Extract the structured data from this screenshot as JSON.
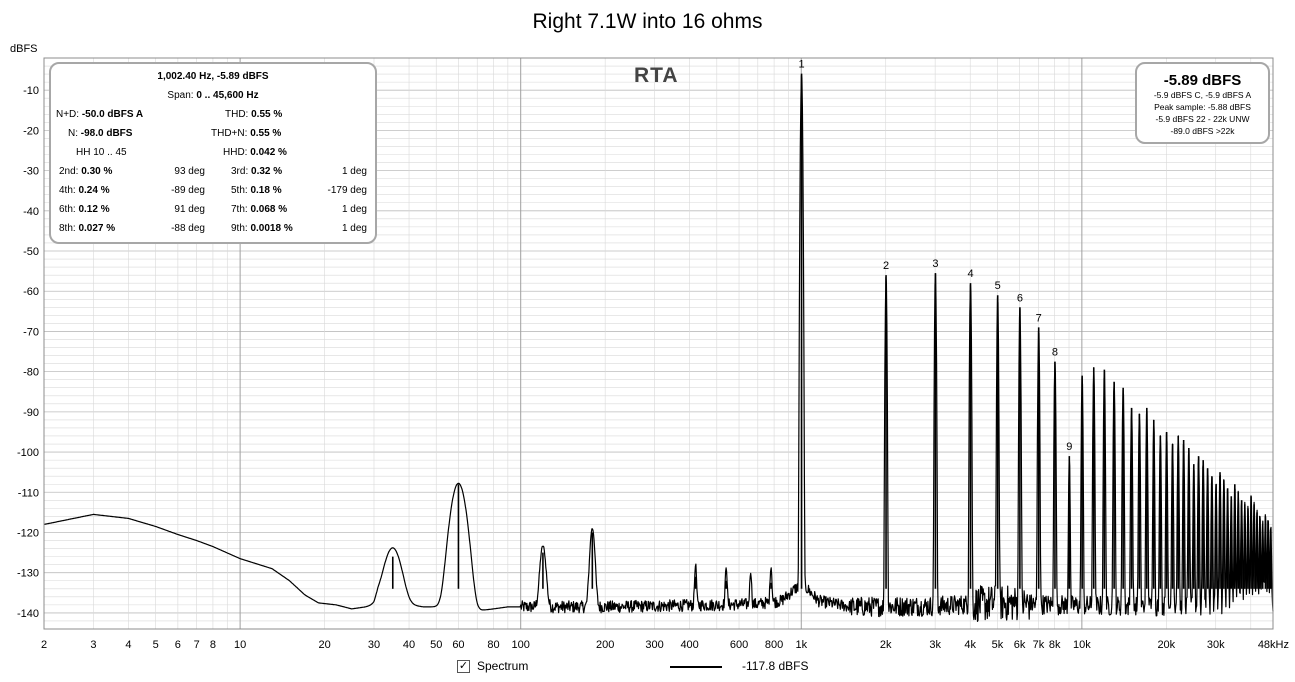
{
  "chart_data": {
    "type": "line",
    "title": "Right 7.1W into 16 ohms",
    "ylabel": "dBFS",
    "xlabel": "",
    "x_scale": "log",
    "xlim_hz": [
      2,
      48000
    ],
    "ylim": [
      -144,
      -2
    ],
    "y_ticks": [
      -10,
      -20,
      -30,
      -40,
      -50,
      -60,
      -70,
      -80,
      -90,
      -100,
      -110,
      -120,
      -130,
      -140
    ],
    "x_ticks": [
      {
        "v": 2,
        "label": "2"
      },
      {
        "v": 3,
        "label": "3"
      },
      {
        "v": 4,
        "label": "4"
      },
      {
        "v": 5,
        "label": "5"
      },
      {
        "v": 6,
        "label": "6"
      },
      {
        "v": 7,
        "label": "7"
      },
      {
        "v": 8,
        "label": "8"
      },
      {
        "v": 10,
        "label": "10"
      },
      {
        "v": 20,
        "label": "20"
      },
      {
        "v": 30,
        "label": "30"
      },
      {
        "v": 40,
        "label": "40"
      },
      {
        "v": 50,
        "label": "50"
      },
      {
        "v": 60,
        "label": "60"
      },
      {
        "v": 80,
        "label": "80"
      },
      {
        "v": 100,
        "label": "100"
      },
      {
        "v": 200,
        "label": "200"
      },
      {
        "v": 300,
        "label": "300"
      },
      {
        "v": 400,
        "label": "400"
      },
      {
        "v": 600,
        "label": "600"
      },
      {
        "v": 800,
        "label": "800"
      },
      {
        "v": 1000,
        "label": "1k"
      },
      {
        "v": 2000,
        "label": "2k"
      },
      {
        "v": 3000,
        "label": "3k"
      },
      {
        "v": 4000,
        "label": "4k"
      },
      {
        "v": 5000,
        "label": "5k"
      },
      {
        "v": 6000,
        "label": "6k"
      },
      {
        "v": 7000,
        "label": "7k"
      },
      {
        "v": 8000,
        "label": "8k"
      },
      {
        "v": 10000,
        "label": "10k"
      },
      {
        "v": 20000,
        "label": "20k"
      },
      {
        "v": 30000,
        "label": "30k"
      },
      {
        "v": 48000,
        "label": "48kHz"
      }
    ],
    "grid": true,
    "overlay_label": "RTA",
    "series": [
      {
        "noise_floor": [
          [
            2,
            -118
          ],
          [
            3,
            -115.5
          ],
          [
            4,
            -116.5
          ],
          [
            5,
            -118.5
          ],
          [
            6,
            -120.5
          ],
          [
            7,
            -122
          ],
          [
            8,
            -123.5
          ],
          [
            10,
            -126.5
          ],
          [
            13,
            -129
          ],
          [
            15,
            -132
          ],
          [
            17,
            -135.5
          ],
          [
            19,
            -137.5
          ],
          [
            22,
            -138
          ],
          [
            25,
            -139
          ],
          [
            28,
            -138.5
          ],
          [
            30,
            -138
          ],
          [
            31,
            -136
          ],
          [
            38,
            -137.5
          ],
          [
            40,
            -138
          ],
          [
            45,
            -138.5
          ],
          [
            51,
            -138.5
          ],
          [
            70,
            -139.5
          ],
          [
            80,
            -139
          ],
          [
            90,
            -138.5
          ],
          [
            100,
            -138.5
          ],
          [
            150,
            -138.5
          ],
          [
            200,
            -138.5
          ],
          [
            300,
            -138.3
          ],
          [
            500,
            -138
          ],
          [
            700,
            -137.8
          ],
          [
            850,
            -137
          ],
          [
            950,
            -134
          ],
          [
            1000,
            -133
          ],
          [
            1050,
            -134
          ],
          [
            1150,
            -137
          ],
          [
            1500,
            -138.5
          ],
          [
            3000,
            -138.3
          ],
          [
            5000,
            -137.5
          ],
          [
            10000,
            -138.2
          ],
          [
            20000,
            -138.4
          ],
          [
            48000,
            -138.8
          ]
        ],
        "peaks": [
          {
            "f": 35,
            "db": -126,
            "w": 0.035
          },
          {
            "f": 60,
            "db": -108,
            "w": 0.03
          },
          {
            "f": 120,
            "db": -125,
            "w": 0.012
          },
          {
            "f": 180,
            "db": -120,
            "w": 0.01
          },
          {
            "f": 420,
            "db": -131,
            "w": 0.004
          },
          {
            "f": 540,
            "db": -132,
            "w": 0.004
          },
          {
            "f": 660,
            "db": -134,
            "w": 0.004
          },
          {
            "f": 780,
            "db": -132.5,
            "w": 0.004
          },
          {
            "f": 1002.4,
            "db": -5.9,
            "w": 0.003
          },
          {
            "f": 2005,
            "db": -56,
            "w": 0.0025
          },
          {
            "f": 3007,
            "db": -55.5,
            "w": 0.0025
          },
          {
            "f": 4010,
            "db": -58,
            "w": 0.0025
          },
          {
            "f": 5012,
            "db": -61,
            "w": 0.0025
          },
          {
            "f": 6014,
            "db": -64,
            "w": 0.0025
          },
          {
            "f": 7017,
            "db": -69,
            "w": 0.0025
          },
          {
            "f": 8019,
            "db": -77.5,
            "w": 0.0025
          },
          {
            "f": 9022,
            "db": -101,
            "w": 0.0025
          },
          {
            "f": 10024,
            "db": -81,
            "w": 0.0025
          },
          {
            "f": 11026,
            "db": -79,
            "w": 0.0025
          },
          {
            "f": 12029,
            "db": -79.5,
            "w": 0.0025
          },
          {
            "f": 13031,
            "db": -82.5,
            "w": 0.0025
          },
          {
            "f": 14034,
            "db": -84,
            "w": 0.0025
          },
          {
            "f": 15036,
            "db": -89,
            "w": 0.0025
          },
          {
            "f": 16038,
            "db": -90.5,
            "w": 0.0025
          },
          {
            "f": 17041,
            "db": -89,
            "w": 0.0025
          },
          {
            "f": 18043,
            "db": -92,
            "w": 0.0025
          },
          {
            "f": 19046,
            "db": -96,
            "w": 0.0025
          },
          {
            "f": 20048,
            "db": -95,
            "w": 0.0025
          },
          {
            "f": 21050,
            "db": -98,
            "w": 0.0025
          },
          {
            "f": 22053,
            "db": -96,
            "w": 0.0025
          },
          {
            "f": 23055,
            "db": -97,
            "w": 0.0025
          },
          {
            "f": 24058,
            "db": -99,
            "w": 0.0025
          },
          {
            "f": 25060,
            "db": -103,
            "w": 0.0025
          },
          {
            "f": 26062,
            "db": -101,
            "w": 0.0025
          },
          {
            "f": 27065,
            "db": -102,
            "w": 0.0025
          },
          {
            "f": 28067,
            "db": -104,
            "w": 0.0025
          },
          {
            "f": 29070,
            "db": -106,
            "w": 0.0025
          },
          {
            "f": 30072,
            "db": -108,
            "w": 0.0025
          },
          {
            "f": 31074,
            "db": -105,
            "w": 0.0025
          },
          {
            "f": 32077,
            "db": -107,
            "w": 0.0025
          },
          {
            "f": 33079,
            "db": -109,
            "w": 0.0025
          },
          {
            "f": 34082,
            "db": -111,
            "w": 0.0025
          },
          {
            "f": 35084,
            "db": -108,
            "w": 0.0025
          },
          {
            "f": 36086,
            "db": -110,
            "w": 0.0025
          },
          {
            "f": 37089,
            "db": -112,
            "w": 0.0025
          },
          {
            "f": 38091,
            "db": -113,
            "w": 0.0025
          },
          {
            "f": 39094,
            "db": -114,
            "w": 0.0025
          },
          {
            "f": 40096,
            "db": -111,
            "w": 0.0025
          },
          {
            "f": 41098,
            "db": -113,
            "w": 0.0025
          },
          {
            "f": 42101,
            "db": -115,
            "w": 0.0025
          },
          {
            "f": 43103,
            "db": -116,
            "w": 0.0025
          },
          {
            "f": 44106,
            "db": -118,
            "w": 0.0025
          },
          {
            "f": 45108,
            "db": -116,
            "w": 0.0025
          },
          {
            "f": 46110,
            "db": -117,
            "w": 0.0025
          },
          {
            "f": 47113,
            "db": -119,
            "w": 0.0025
          }
        ]
      }
    ],
    "harmonic_markers": [
      {
        "label": "1",
        "f": 1002.4,
        "db": -5.9
      },
      {
        "label": "2",
        "f": 2005,
        "db": -56
      },
      {
        "label": "3",
        "f": 3007,
        "db": -55.5
      },
      {
        "label": "4",
        "f": 4010,
        "db": -58
      },
      {
        "label": "5",
        "f": 5012,
        "db": -61
      },
      {
        "label": "6",
        "f": 6014,
        "db": -64
      },
      {
        "label": "7",
        "f": 7017,
        "db": -69
      },
      {
        "label": "8",
        "f": 8019,
        "db": -77.5
      },
      {
        "label": "9",
        "f": 9022,
        "db": -101
      }
    ]
  },
  "stats_panel": {
    "header": "1,002.40 Hz, -5.89 dBFS",
    "span_label": "Span:",
    "span_value": "0 .. 45,600 Hz",
    "nd_label": "N+D:",
    "nd_value": "-50.0 dBFS A",
    "thd_label": "THD:",
    "thd_value": "0.55 %",
    "n_label": "N:",
    "n_value": "-98.0 dBFS",
    "thdn_label": "THD+N:",
    "thdn_value": "0.55 %",
    "hh_label": "HH 10 .. 45",
    "hhd_label": "HHD:",
    "hhd_value": "0.042 %",
    "harmonics": [
      {
        "l_label": "2nd:",
        "l_value": "0.30 %",
        "l_phase": "93 deg",
        "r_label": "3rd:",
        "r_value": "0.32 %",
        "r_phase": "1 deg"
      },
      {
        "l_label": "4th:",
        "l_value": "0.24 %",
        "l_phase": "-89 deg",
        "r_label": "5th:",
        "r_value": "0.18 %",
        "r_phase": "-179 deg"
      },
      {
        "l_label": "6th:",
        "l_value": "0.12 %",
        "l_phase": "91 deg",
        "r_label": "7th:",
        "r_value": "0.068 %",
        "r_phase": "1 deg"
      },
      {
        "l_label": "8th:",
        "l_value": "0.027 %",
        "l_phase": "-88 deg",
        "r_label": "9th:",
        "r_value": "0.0018 %",
        "r_phase": "1 deg"
      }
    ]
  },
  "level_panel": {
    "main": "-5.89 dBFS",
    "lines": [
      "-5.9 dBFS C, -5.9 dBFS A",
      "Peak sample: -5.88 dBFS",
      "-5.9 dBFS 22 - 22k UNW",
      "-89.0 dBFS >22k"
    ]
  },
  "legend": {
    "checkbox_label": "Spectrum",
    "checkbox_checked": "✓",
    "line_value": "-117.8 dBFS"
  },
  "colors": {
    "trace": "#000000",
    "grid_minor": "#d9d9d9",
    "grid_major": "#a0a0a0",
    "panel_border": "#a7a7a7"
  }
}
